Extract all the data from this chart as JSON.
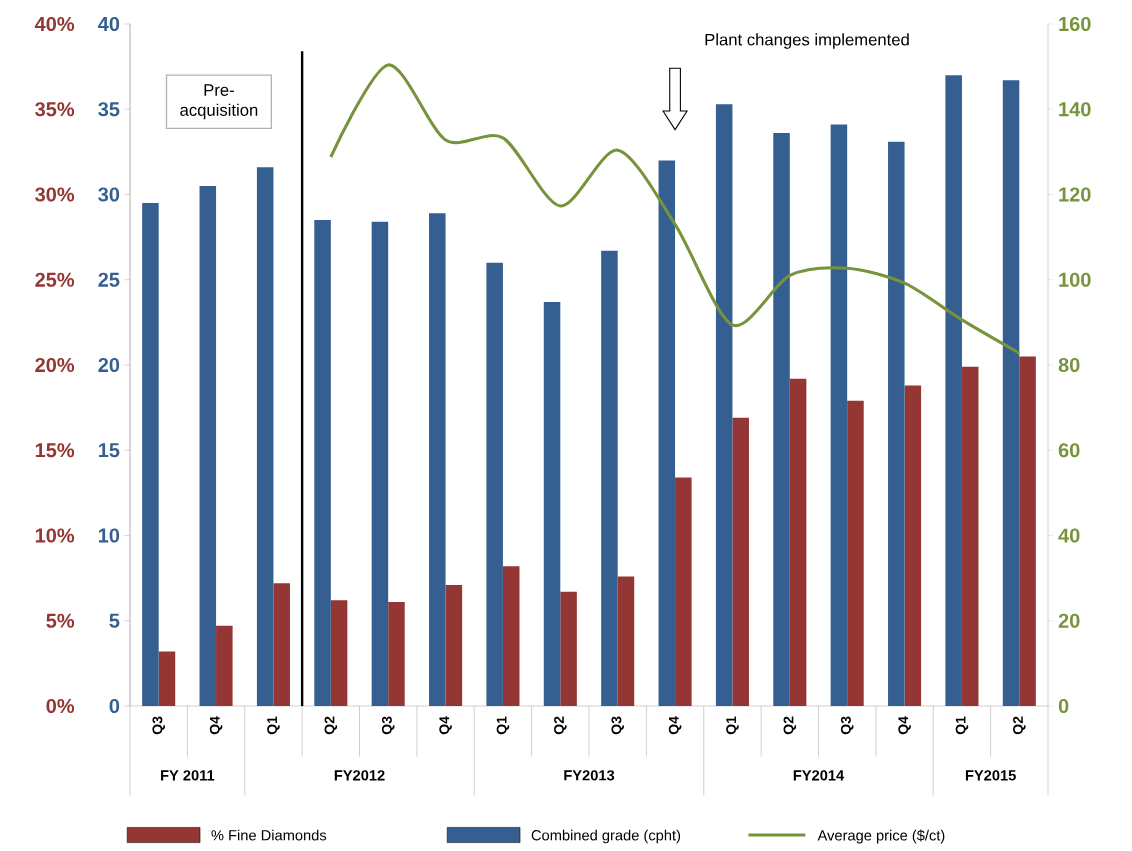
{
  "chart_data": {
    "type": "bar",
    "categories": [
      "Q3",
      "Q4",
      "Q1",
      "Q2",
      "Q3",
      "Q4",
      "Q1",
      "Q2",
      "Q3",
      "Q4",
      "Q1",
      "Q2",
      "Q3",
      "Q4",
      "Q1",
      "Q2"
    ],
    "series": [
      {
        "name": "% Fine Diamonds",
        "axis": "y",
        "color": "#943634",
        "values": [
          3.2,
          4.7,
          7.2,
          6.2,
          6.1,
          7.1,
          8.2,
          6.7,
          7.6,
          13.4,
          16.9,
          19.2,
          17.9,
          18.8,
          19.9,
          20.5
        ]
      },
      {
        "name": "Combined grade (cpht)",
        "axis": "y2",
        "color": "#365f91",
        "values": [
          29.5,
          30.5,
          31.6,
          28.5,
          28.4,
          28.9,
          26.0,
          23.7,
          26.7,
          32.0,
          35.3,
          33.6,
          34.1,
          33.1,
          37.0,
          36.7
        ]
      },
      {
        "name": "Average price ($/ct)",
        "type": "line",
        "axis": "y3",
        "color": "#77933c",
        "values": [
          null,
          null,
          null,
          128.8,
          150.4,
          132.8,
          133.3,
          117.3,
          130.4,
          113,
          89.4,
          101,
          102.7,
          99.2,
          90.6,
          82.8
        ]
      }
    ],
    "ylim": [
      0,
      40
    ],
    "yticks": [
      {
        "value": 0,
        "label": "0%"
      },
      {
        "value": 5,
        "label": "5%"
      },
      {
        "value": 10,
        "label": "10%"
      },
      {
        "value": 15,
        "label": "15%"
      },
      {
        "value": 20,
        "label": "20%"
      },
      {
        "value": 25,
        "label": "25%"
      },
      {
        "value": 30,
        "label": "30%"
      },
      {
        "value": 35,
        "label": "35%"
      },
      {
        "value": 40,
        "label": "40%"
      }
    ],
    "y2lim": [
      0,
      40
    ],
    "y2ticks": [
      0,
      5,
      10,
      15,
      20,
      25,
      30,
      35,
      40
    ],
    "y3lim": [
      0,
      160
    ],
    "y3ticks": [
      0,
      20,
      40,
      60,
      80,
      100,
      120,
      140,
      160
    ],
    "annotations": [
      "Pre-acquisition",
      "Plant changes implemented",
      "FY 2011",
      "FY2012",
      "FY2013",
      "FY2014",
      "FY2015"
    ],
    "legend": "bottom"
  }
}
